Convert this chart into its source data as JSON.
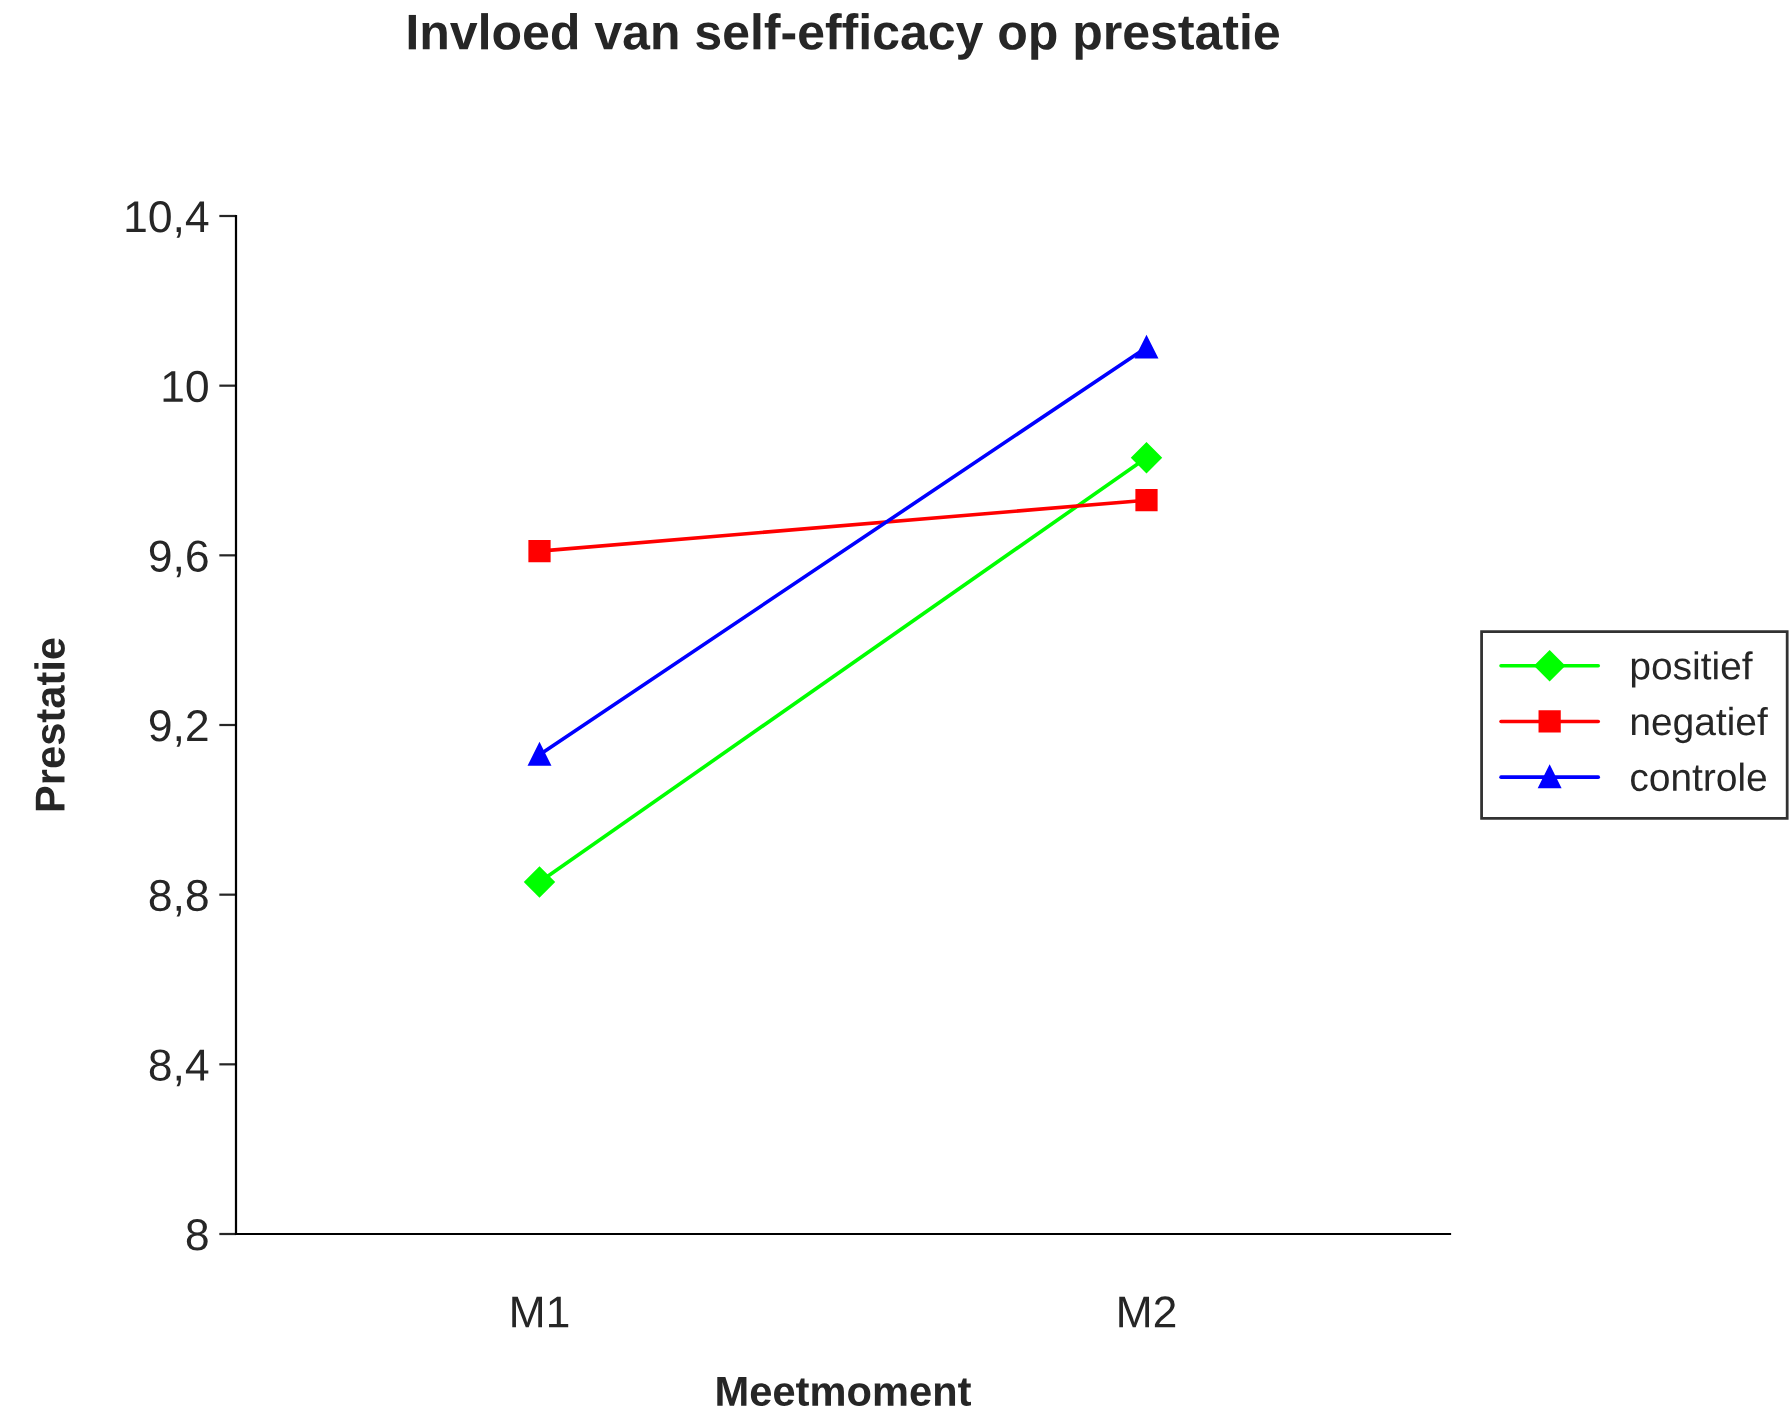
{
  "chart_data": {
    "type": "line",
    "title": "Invloed van self-efficacy op prestatie",
    "xlabel": "Meetmoment",
    "ylabel": "Prestatie",
    "categories": [
      "M1",
      "M2"
    ],
    "series": [
      {
        "name": "positief",
        "color": "#00ff00",
        "marker": "diamond",
        "values": [
          8.83,
          9.83
        ]
      },
      {
        "name": "negatief",
        "color": "#ff0000",
        "marker": "square",
        "values": [
          9.61,
          9.73
        ]
      },
      {
        "name": "controle",
        "color": "#0000ff",
        "marker": "triangle",
        "values": [
          9.13,
          10.09
        ]
      }
    ],
    "ylim": [
      8,
      10.4
    ],
    "yticks": [
      8,
      {
        "value": 8.4,
        "label": "8,4"
      },
      {
        "value": 8.8,
        "label": "8,8"
      },
      {
        "value": 9.2,
        "label": "9,2"
      },
      {
        "value": 9.6,
        "label": "9,6"
      },
      10,
      {
        "value": 10.4,
        "label": "10,4"
      }
    ],
    "grid": false,
    "legend": "right",
    "line_style": "solid"
  }
}
